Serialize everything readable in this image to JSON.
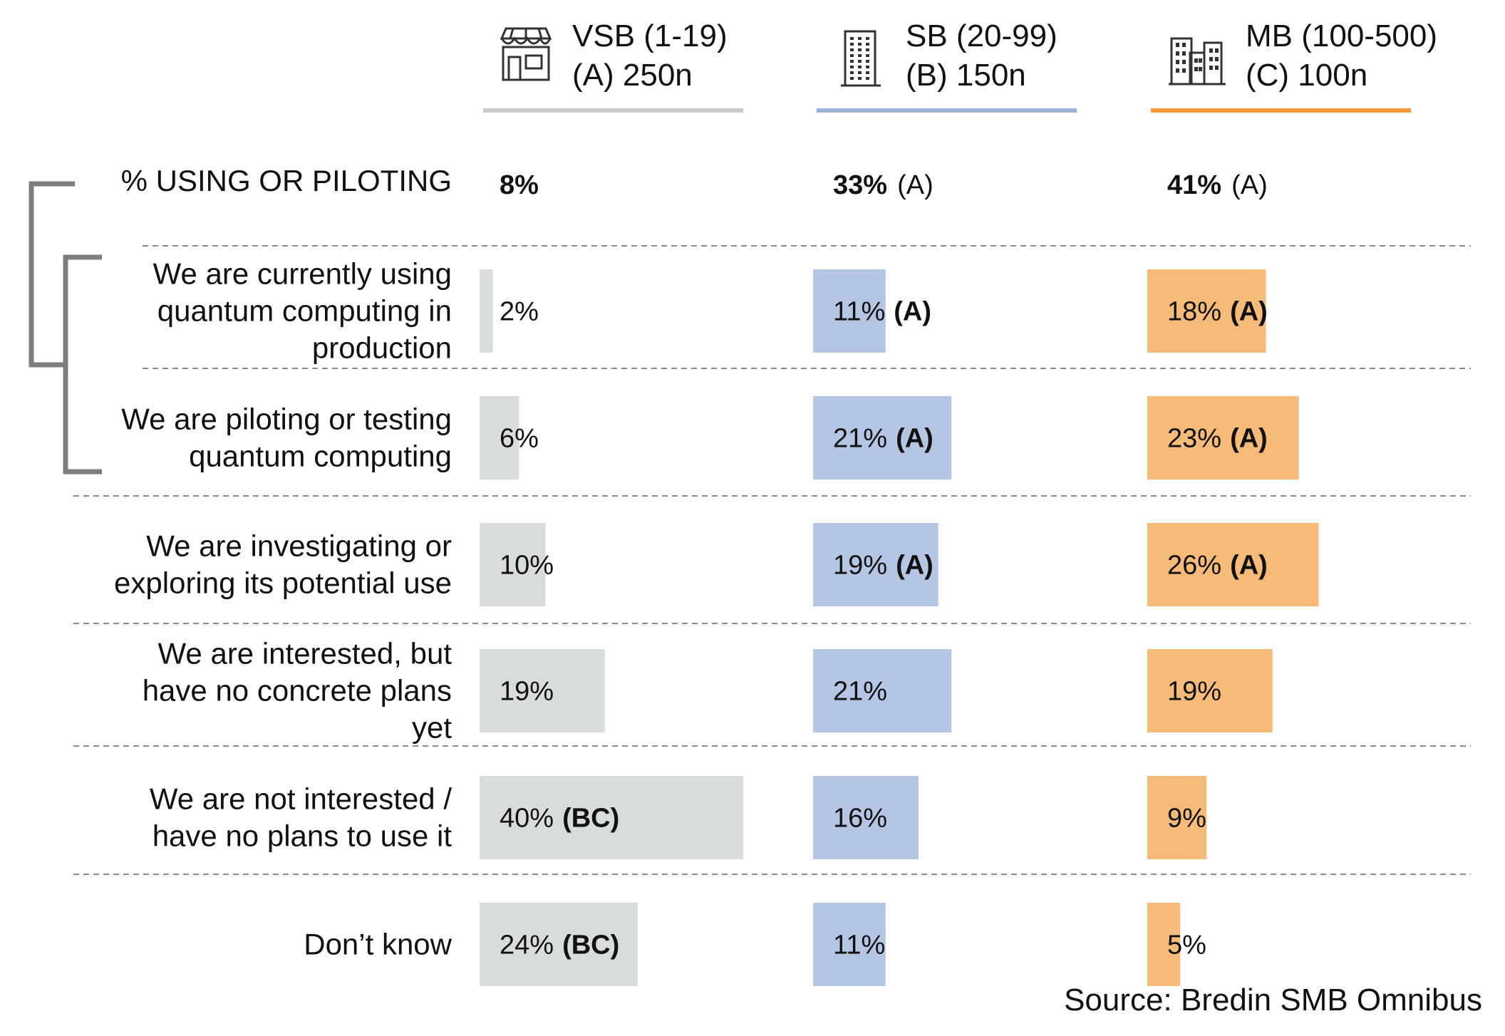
{
  "chart_data": {
    "type": "bar",
    "orientation": "horizontal",
    "groups": [
      {
        "line1": "VSB (1-19)",
        "line2": "(A) 250n",
        "color": "#d9dcdc",
        "rule_color": "#c6cccb",
        "icon": "storefront-icon"
      },
      {
        "line1": "SB (20-99)",
        "line2": "(B) 150n",
        "color": "#b5c5e4",
        "rule_color": "#9eb2d8",
        "icon": "office-tower-icon"
      },
      {
        "line1": "MB (100-500)",
        "line2": "(C) 100n",
        "color": "#f6bb78",
        "rule_color": "#f29a3a",
        "icon": "city-buildings-icon"
      }
    ],
    "summary": {
      "label": "% USING OR PILOTING",
      "values": [
        "8%",
        "33%",
        "41%"
      ],
      "sig": [
        "",
        "(A)",
        "(A)"
      ]
    },
    "rows": [
      {
        "label_lines": [
          "We are currently using",
          "quantum computing in",
          "production"
        ],
        "values": [
          2,
          11,
          18
        ],
        "sig": [
          "",
          "(A)",
          "(A)"
        ]
      },
      {
        "label_lines": [
          "We are piloting or testing",
          "quantum computing"
        ],
        "values": [
          6,
          21,
          23
        ],
        "sig": [
          "",
          "(A)",
          "(A)"
        ]
      },
      {
        "label_lines": [
          "We are investigating or",
          "exploring its potential use"
        ],
        "values": [
          10,
          19,
          26
        ],
        "sig": [
          "",
          "(A)",
          "(A)"
        ]
      },
      {
        "label_lines": [
          "We are interested, but",
          "have no concrete plans",
          "yet"
        ],
        "values": [
          19,
          21,
          19
        ],
        "sig": [
          "",
          "",
          ""
        ]
      },
      {
        "label_lines": [
          "We are not interested /",
          "have no plans to use it"
        ],
        "values": [
          40,
          16,
          9
        ],
        "sig": [
          "(BC)",
          "",
          ""
        ]
      },
      {
        "label_lines": [
          "Don’t know"
        ],
        "values": [
          24,
          11,
          5
        ],
        "sig": [
          "(BC)",
          "",
          ""
        ]
      }
    ],
    "value_suffix": "%",
    "xlim": [
      0,
      100
    ],
    "source": "Source: Bredin SMB Omnibus"
  }
}
